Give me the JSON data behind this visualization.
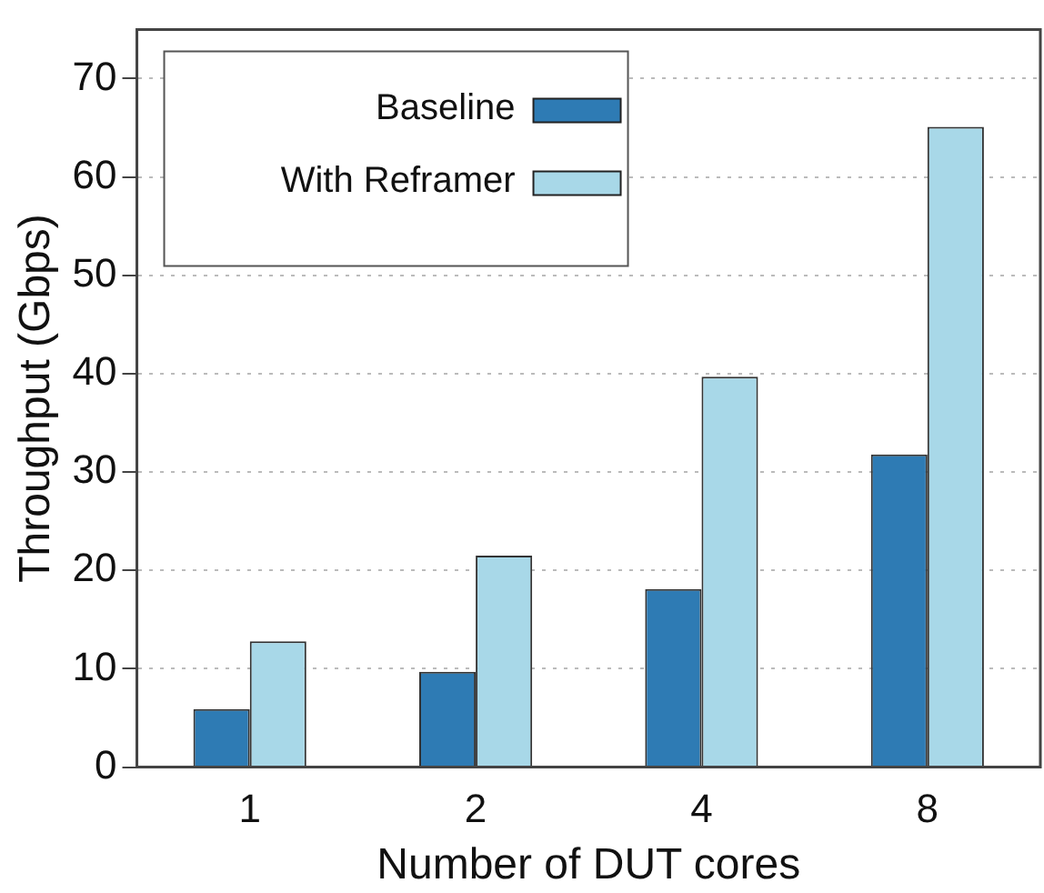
{
  "chart_data": {
    "type": "bar",
    "xlabel": "Number of DUT cores",
    "ylabel": "Throughput (Gbps)",
    "categories": [
      "1",
      "2",
      "4",
      "8"
    ],
    "series": [
      {
        "name": "Baseline",
        "color": "#2e7bb4",
        "values": [
          5.9,
          9.7,
          18.1,
          31.8
        ]
      },
      {
        "name": "With Reframer",
        "color": "#a8d8e8",
        "values": [
          12.8,
          21.5,
          39.7,
          65.1
        ]
      }
    ],
    "ylim": [
      0,
      75
    ],
    "yticks": [
      0,
      10,
      20,
      30,
      40,
      50,
      60,
      70
    ],
    "grid": "y",
    "legend": "top left"
  }
}
